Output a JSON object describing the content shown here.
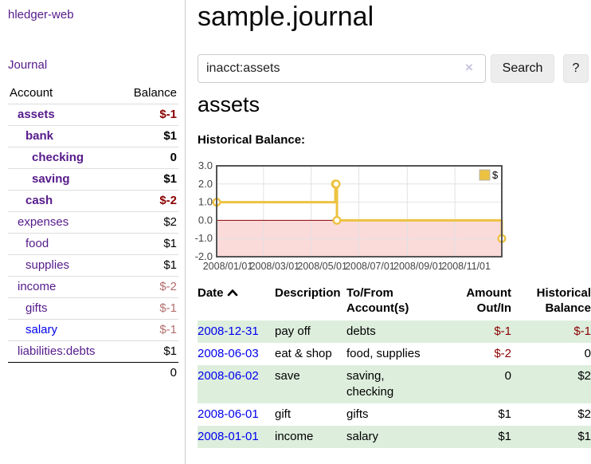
{
  "app": {
    "brand": "hledger-web",
    "nav_journal": "Journal"
  },
  "sidebar": {
    "account_header": "Account",
    "balance_header": "Balance",
    "accounts": [
      {
        "name": "assets",
        "balance": "$-1"
      },
      {
        "name": "bank",
        "balance": "$1"
      },
      {
        "name": "checking",
        "balance": "0"
      },
      {
        "name": "saving",
        "balance": "$1"
      },
      {
        "name": "cash",
        "balance": "$-2"
      },
      {
        "name": "expenses",
        "balance": "$2"
      },
      {
        "name": "food",
        "balance": "$1"
      },
      {
        "name": "supplies",
        "balance": "$1"
      },
      {
        "name": "income",
        "balance": "$-2"
      },
      {
        "name": "gifts",
        "balance": "$-1"
      },
      {
        "name": "salary",
        "balance": "$-1"
      },
      {
        "name": "liabilities:debts",
        "balance": "$1"
      }
    ],
    "total": "0"
  },
  "header": {
    "title": "sample.journal"
  },
  "search": {
    "value": "inacct:assets",
    "clear_icon": "×",
    "button_label": "Search",
    "help_label": "?"
  },
  "register": {
    "heading": "assets",
    "chart_label": "Historical Balance:"
  },
  "chart_data": {
    "type": "line",
    "title": "Historical Balance",
    "legend": "$",
    "legend_position": "top-right",
    "grid": true,
    "ylim": [
      -2,
      3
    ],
    "y_ticks": [
      3.0,
      2.0,
      1.0,
      0.0,
      -1.0,
      -2.0
    ],
    "x_ticks": [
      {
        "label": "2008/01/01",
        "x": 0.0
      },
      {
        "label": "2008/03/01",
        "x": 0.1644
      },
      {
        "label": "2008/05/01",
        "x": 0.3315
      },
      {
        "label": "2008/07/01",
        "x": 0.4986
      },
      {
        "label": "2008/09/01",
        "x": 0.6685
      },
      {
        "label": "2008/11/01",
        "x": 0.8356
      }
    ],
    "series": [
      {
        "name": "$",
        "color": "#EDC240",
        "steps": true,
        "points": [
          {
            "date": "2008-01-01",
            "x": 0.0,
            "y": 1
          },
          {
            "date": "2008-06-01",
            "x": 0.4164,
            "y": 2
          },
          {
            "date": "2008-06-02",
            "x": 0.4192,
            "y": 2
          },
          {
            "date": "2008-06-03",
            "x": 0.4219,
            "y": 0
          },
          {
            "date": "2008-12-31",
            "x": 1.0,
            "y": -1
          }
        ]
      }
    ],
    "negative_region_fill": "#fbdada",
    "zero_line_color": "#8b0000",
    "grid_color": "#e2e2e2",
    "border_color": "#545454"
  },
  "table": {
    "headers": {
      "date": "Date",
      "description": "Description",
      "tofrom1": "To/From",
      "tofrom2": "Account(s)",
      "amount1": "Amount",
      "amount2": "Out/In",
      "hist1": "Historical",
      "hist2": "Balance"
    },
    "rows": [
      {
        "date": "2008-12-31",
        "description": "pay off",
        "accounts": "debts",
        "amount": "$-1",
        "balance": "$-1"
      },
      {
        "date": "2008-06-03",
        "description": "eat & shop",
        "accounts": "food, supplies",
        "amount": "$-2",
        "balance": "0"
      },
      {
        "date": "2008-06-02",
        "description": "save",
        "accounts": "saving, checking",
        "amount": "0",
        "balance": "$2"
      },
      {
        "date": "2008-06-01",
        "description": "gift",
        "accounts": "gifts",
        "amount": "$1",
        "balance": "$2"
      },
      {
        "date": "2008-01-01",
        "description": "income",
        "accounts": "salary",
        "amount": "$1",
        "balance": "$1"
      }
    ]
  }
}
